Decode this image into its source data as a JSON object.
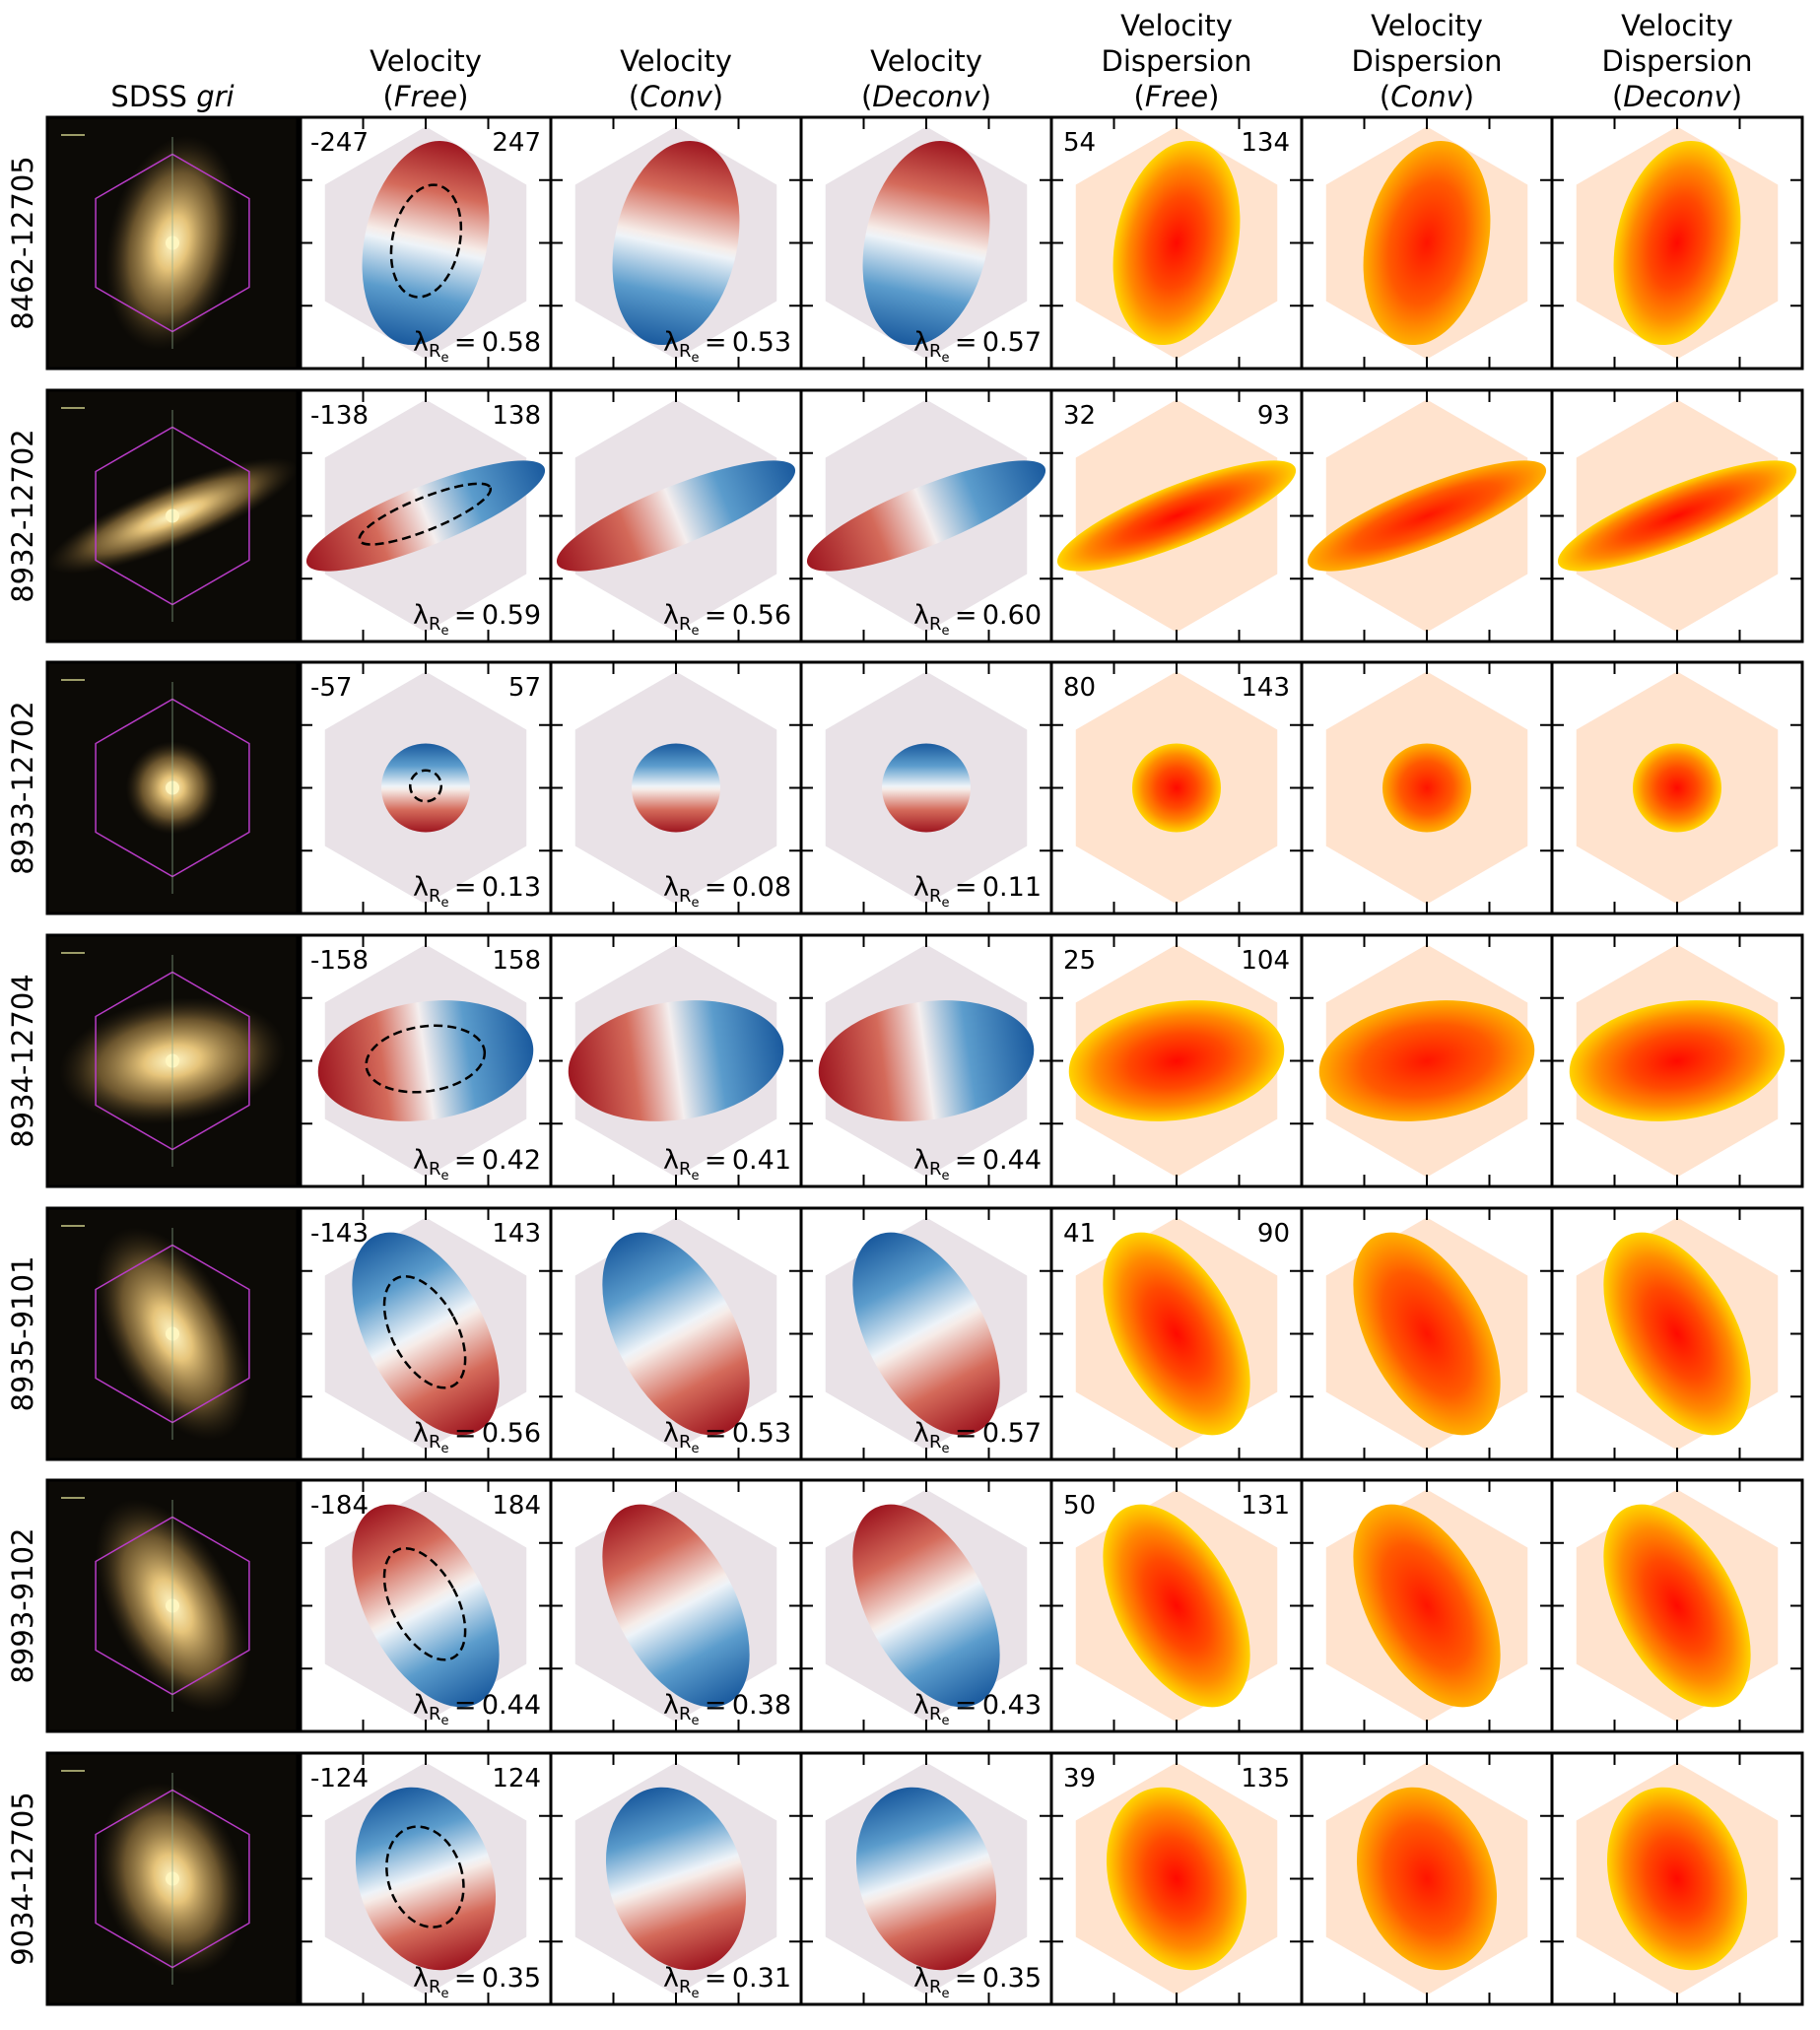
{
  "figure": {
    "columns": [
      {
        "key": "sdss",
        "lines": [
          "SDSS gri"
        ]
      },
      {
        "key": "vel_free",
        "lines": [
          "Velocity",
          "(Free)"
        ]
      },
      {
        "key": "vel_conv",
        "lines": [
          "Velocity",
          "(Conv)"
        ]
      },
      {
        "key": "vel_deconv",
        "lines": [
          "Velocity",
          "(Deconv)"
        ]
      },
      {
        "key": "disp_free",
        "lines": [
          "Velocity",
          "Dispersion",
          "(Free)"
        ]
      },
      {
        "key": "disp_conv",
        "lines": [
          "Velocity",
          "Dispersion",
          "(Conv)"
        ]
      },
      {
        "key": "disp_deconv",
        "lines": [
          "Velocity",
          "Dispersion",
          "(Deconv)"
        ]
      }
    ],
    "rows": [
      {
        "id": "8462-12705",
        "vmin": "-247",
        "vmax": "247",
        "smin": "54",
        "smax": "134",
        "lambda": [
          "0.58",
          "0.53",
          "0.57"
        ],
        "shape": "tall",
        "orient": "blue-bottom"
      },
      {
        "id": "8932-12702",
        "vmin": "-138",
        "vmax": "138",
        "smin": "32",
        "smax": "93",
        "lambda": [
          "0.59",
          "0.56",
          "0.60"
        ],
        "shape": "strip",
        "orient": "red-left"
      },
      {
        "id": "8933-12702",
        "vmin": "-57",
        "vmax": "57",
        "smin": "80",
        "smax": "143",
        "lambda": [
          "0.13",
          "0.08",
          "0.11"
        ],
        "shape": "round",
        "orient": "blue-top"
      },
      {
        "id": "8934-12704",
        "vmin": "-158",
        "vmax": "158",
        "smin": "25",
        "smax": "104",
        "lambda": [
          "0.42",
          "0.41",
          "0.44"
        ],
        "shape": "wide",
        "orient": "red-left"
      },
      {
        "id": "8935-9101",
        "vmin": "-143",
        "vmax": "143",
        "smin": "41",
        "smax": "90",
        "lambda": [
          "0.56",
          "0.53",
          "0.57"
        ],
        "shape": "tilt",
        "orient": "blue-top"
      },
      {
        "id": "8993-9102",
        "vmin": "-184",
        "vmax": "184",
        "smin": "50",
        "smax": "131",
        "lambda": [
          "0.44",
          "0.38",
          "0.43"
        ],
        "shape": "tilt",
        "orient": "red-top"
      },
      {
        "id": "9034-12705",
        "vmin": "-124",
        "vmax": "124",
        "smin": "39",
        "smax": "135",
        "lambda": [
          "0.35",
          "0.31",
          "0.35"
        ],
        "shape": "oval",
        "orient": "blue-top"
      }
    ],
    "lambda_symbol": "λ",
    "lambda_subscript": "R",
    "lambda_subsubscript": "e",
    "colors": {
      "frame": "#000000",
      "sdss_bg": "#0c0a06",
      "hexagon": "#b93cc8"
    }
  }
}
